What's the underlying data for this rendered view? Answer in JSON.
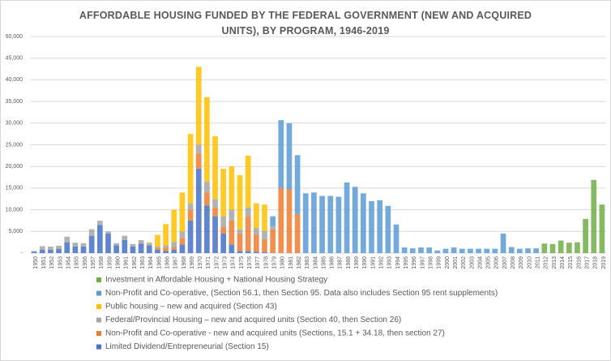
{
  "chart_data": {
    "type": "stacked-bar",
    "title": "AFFORDABLE HOUSING FUNDED BY THE FEDERAL GOVERNMENT (NEW AND ACQUIRED UNITS), BY PROGRAM, 1946-2019",
    "categories": [
      "1950",
      "1951",
      "1952",
      "1953",
      "1954",
      "1955",
      "1956",
      "1957",
      "1958",
      "1959",
      "1960",
      "1961",
      "1962",
      "1963",
      "1964",
      "1965",
      "1966",
      "1967",
      "1968",
      "1969",
      "1970",
      "1971",
      "1972",
      "1973",
      "1974",
      "1975",
      "1976",
      "1977",
      "1978",
      "1979",
      "1980",
      "1981",
      "1982",
      "1983",
      "1984",
      "1985",
      "1986",
      "1987",
      "1988",
      "1989",
      "1990",
      "1991",
      "1992",
      "1993",
      "1994",
      "1995",
      "1996",
      "1997",
      "1998",
      "1999",
      "2000",
      "2001",
      "2002",
      "2003",
      "2004",
      "2005",
      "2006",
      "2007",
      "2008",
      "2009",
      "2010",
      "2011",
      "2012",
      "2013",
      "2014",
      "2015",
      "2016",
      "2017",
      "2018",
      "2019"
    ],
    "series": [
      {
        "name": "Investment in Affordable Housing + National Housing Strategy",
        "color": "#70ad47",
        "values": [
          null,
          null,
          null,
          null,
          null,
          null,
          null,
          null,
          null,
          null,
          null,
          null,
          null,
          null,
          null,
          null,
          null,
          null,
          null,
          null,
          null,
          null,
          null,
          null,
          null,
          null,
          null,
          null,
          null,
          null,
          null,
          null,
          null,
          null,
          null,
          null,
          null,
          null,
          null,
          null,
          null,
          null,
          null,
          null,
          null,
          null,
          null,
          null,
          null,
          null,
          null,
          null,
          null,
          null,
          null,
          null,
          null,
          null,
          null,
          null,
          null,
          null,
          2200,
          2100,
          2900,
          2400,
          2500,
          7900,
          16900,
          11200
        ]
      },
      {
        "name": "Non-Profit and Co-operative, (Section 56.1, then Section 95. Data also includes Section 95 rent supplements)",
        "color": "#5b9bd5",
        "values": [
          null,
          null,
          null,
          null,
          null,
          null,
          null,
          null,
          null,
          null,
          null,
          null,
          null,
          null,
          null,
          null,
          null,
          null,
          null,
          null,
          null,
          null,
          null,
          null,
          null,
          null,
          null,
          null,
          null,
          2300,
          15700,
          15300,
          13600,
          13800,
          14000,
          13200,
          13200,
          13000,
          16300,
          15300,
          13800,
          12000,
          12200,
          10900,
          6600,
          1300,
          1100,
          1300,
          1300,
          600,
          1000,
          1300,
          1000,
          1000,
          1000,
          1000,
          1000,
          4500,
          1400,
          1000,
          1100,
          1100,
          null,
          null,
          null,
          null,
          null,
          null,
          null,
          null
        ]
      },
      {
        "name": "Public housing – new and acquired (Section 43)",
        "color": "#ffc000",
        "values": [
          null,
          null,
          null,
          null,
          null,
          null,
          null,
          null,
          null,
          null,
          null,
          null,
          null,
          null,
          200,
          2700,
          4900,
          7400,
          9000,
          16000,
          18000,
          19500,
          14500,
          11000,
          10000,
          12500,
          12000,
          5700,
          6000,
          null,
          null,
          null,
          null,
          null,
          null,
          null,
          null,
          null,
          null,
          null,
          null,
          null,
          null,
          null,
          null,
          null,
          null,
          null,
          null,
          null,
          null,
          null,
          null,
          null,
          null,
          null,
          null,
          null,
          null,
          null,
          null,
          null,
          null,
          null,
          null,
          null,
          null,
          null,
          null,
          null
        ]
      },
      {
        "name": "Federal/Provincial Housing – new and acquired units (Section 40, then Section 26)",
        "color": "#a5a5a5",
        "values": [
          200,
          800,
          700,
          700,
          1300,
          900,
          800,
          1500,
          1000,
          500,
          500,
          1000,
          600,
          800,
          500,
          300,
          500,
          1200,
          1500,
          1500,
          2000,
          2500,
          2000,
          2500,
          2500,
          1000,
          2000,
          1500,
          2000,
          700,
          null,
          null,
          null,
          null,
          null,
          null,
          null,
          null,
          null,
          null,
          null,
          null,
          null,
          null,
          null,
          null,
          null,
          null,
          null,
          null,
          null,
          null,
          null,
          null,
          null,
          null,
          null,
          null,
          null,
          null,
          null,
          null,
          null,
          null,
          null,
          null,
          null,
          null,
          null,
          null
        ]
      },
      {
        "name": "Non-Profit and Co-operative - new and acquired units (Sections, 15.1 + 34.18, then section 27)",
        "color": "#ed7d31",
        "values": [
          null,
          null,
          null,
          null,
          null,
          null,
          null,
          null,
          null,
          null,
          null,
          null,
          null,
          null,
          null,
          400,
          800,
          600,
          1500,
          2500,
          3500,
          3000,
          2000,
          1500,
          5500,
          4000,
          8000,
          4000,
          3000,
          5500,
          15000,
          14700,
          9000,
          null,
          null,
          null,
          null,
          null,
          null,
          null,
          null,
          null,
          null,
          null,
          null,
          null,
          null,
          null,
          null,
          null,
          null,
          null,
          null,
          null,
          null,
          null,
          null,
          null,
          null,
          null,
          null,
          null,
          null,
          null,
          null,
          null,
          null,
          null,
          null,
          null
        ]
      },
      {
        "name": "Limited Dividend/Entrepreneurial (Section 15)",
        "color": "#4472c4",
        "values": [
          300,
          800,
          800,
          1000,
          2500,
          1500,
          1500,
          4000,
          6500,
          4500,
          1800,
          3000,
          1500,
          2200,
          1800,
          800,
          500,
          800,
          2000,
          7500,
          19500,
          11000,
          8500,
          4500,
          2000,
          500,
          500,
          300,
          200,
          null,
          null,
          null,
          null,
          null,
          null,
          null,
          null,
          null,
          null,
          null,
          null,
          null,
          null,
          null,
          null,
          null,
          null,
          null,
          null,
          null,
          null,
          null,
          null,
          null,
          null,
          null,
          null,
          null,
          null,
          null,
          null,
          null,
          null,
          null,
          null,
          null,
          null,
          null,
          null,
          null
        ]
      }
    ],
    "ylim": [
      0,
      50000
    ],
    "yticks": [
      {
        "value": 0,
        "label": "-"
      },
      {
        "value": 5000,
        "label": "5,000"
      },
      {
        "value": 10000,
        "label": "10,000"
      },
      {
        "value": 15000,
        "label": "15,000"
      },
      {
        "value": 20000,
        "label": "20,000"
      },
      {
        "value": 25000,
        "label": "25,000"
      },
      {
        "value": 30000,
        "label": "30,000"
      },
      {
        "value": 35000,
        "label": "35,000"
      },
      {
        "value": 40000,
        "label": "40,000"
      },
      {
        "value": 45000,
        "label": "45,000"
      },
      {
        "value": 50000,
        "label": "50,000"
      }
    ],
    "grid": true,
    "legend": "bottom"
  }
}
